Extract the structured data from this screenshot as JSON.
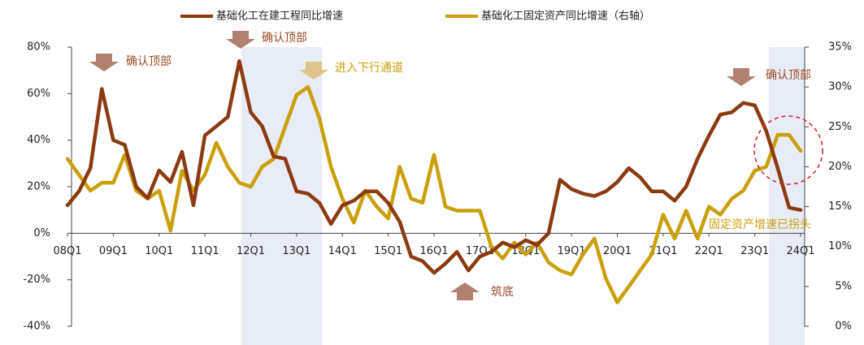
{
  "chart_data": {
    "type": "line",
    "categories": [
      "08Q1",
      null,
      null,
      null,
      "09Q1",
      null,
      null,
      null,
      "10Q1",
      null,
      null,
      null,
      "11Q1",
      null,
      null,
      null,
      "12Q1",
      null,
      null,
      null,
      "13Q1",
      null,
      null,
      null,
      "14Q1",
      null,
      null,
      null,
      "15Q1",
      null,
      null,
      null,
      "16Q1",
      null,
      null,
      null,
      "17Q1",
      null,
      null,
      null,
      "18Q1",
      null,
      null,
      null,
      "19Q1",
      null,
      null,
      null,
      "20Q1",
      null,
      null,
      null,
      "21Q1",
      null,
      null,
      null,
      "22Q1",
      null,
      null,
      null,
      "23Q1",
      null,
      null,
      null,
      "24Q1"
    ],
    "series": [
      {
        "name": "基础化工在建工程同比增速",
        "color": "#8b3a12",
        "values": [
          12,
          18,
          28,
          62,
          40,
          38,
          20,
          15,
          27,
          22,
          35,
          12,
          42,
          46,
          50,
          74,
          52,
          46,
          33,
          32,
          18,
          17,
          13,
          4,
          12,
          14,
          18,
          18,
          13,
          5,
          -10,
          -12,
          -17,
          -13,
          -8,
          -16,
          -10,
          -8,
          -4,
          -6,
          -3,
          -5,
          0,
          23,
          19,
          17,
          16,
          18,
          22,
          28,
          24,
          18,
          18,
          14,
          20,
          32,
          42,
          51,
          52,
          56,
          55,
          44,
          28,
          11,
          10
        ]
      },
      {
        "name": "基础化工固定资产同比增速（右轴）",
        "color": "#c9a00a",
        "axis": "y2",
        "values": [
          21,
          19,
          17,
          18,
          18,
          21.5,
          17,
          16,
          17,
          12,
          19.5,
          17,
          19,
          23,
          20,
          18,
          17.5,
          20,
          21,
          25,
          29,
          30,
          26,
          20,
          16,
          13,
          17,
          15,
          13.5,
          20,
          16,
          15.5,
          21.5,
          15,
          14.5,
          14.5,
          14.5,
          10,
          8.5,
          10.5,
          9,
          10.5,
          8,
          7,
          6.5,
          9,
          11,
          6,
          3,
          5,
          7,
          9,
          14,
          11,
          14.5,
          11,
          15,
          14,
          16,
          17,
          19.5,
          20,
          24,
          24,
          22
        ]
      }
    ],
    "ylim": [
      -40,
      80
    ],
    "yticks": [
      {
        "value": -40,
        "label": "-40%"
      },
      {
        "value": -20,
        "label": "-20%"
      },
      {
        "value": 0,
        "label": "0%"
      },
      {
        "value": 20,
        "label": "20%"
      },
      {
        "value": 40,
        "label": "40%"
      },
      {
        "value": 60,
        "label": "60%"
      },
      {
        "value": 80,
        "label": "80%"
      }
    ],
    "y2lim": [
      0,
      35
    ],
    "y2ticks": [
      {
        "value": 0,
        "label": "0%"
      },
      {
        "value": 5,
        "label": "5%"
      },
      {
        "value": 10,
        "label": "10%"
      },
      {
        "value": 15,
        "label": "15%"
      },
      {
        "value": 20,
        "label": "20%"
      },
      {
        "value": 25,
        "label": "25%"
      },
      {
        "value": 30,
        "label": "30%"
      },
      {
        "value": 35,
        "label": "35%"
      }
    ],
    "annotations": [
      "确认顶部",
      "确认顶部",
      "进入下行通道",
      "筑底",
      "确认顶部",
      "固定资产增速已拐头"
    ]
  }
}
